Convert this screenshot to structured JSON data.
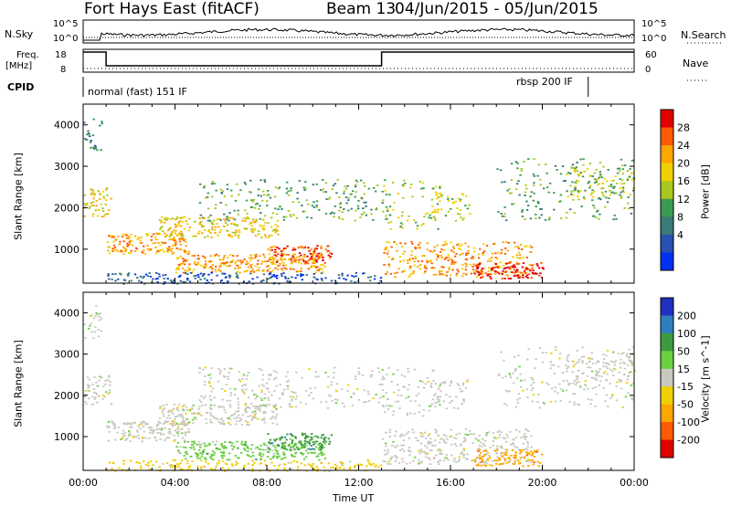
{
  "header": {
    "station": "Fort Hays East (fitACF)",
    "beam": "Beam 13",
    "date_range": "04/Jun/2015 - 05/Jun/2015"
  },
  "top_panels": {
    "nsky_label": "N.Sky",
    "nsky_ticks": [
      "10^5",
      "10^0"
    ],
    "nsearch_ticks": [
      "10^5",
      "10^0"
    ],
    "nsearch_label": "N.Search",
    "freq_label_line1": "Freq.",
    "freq_label_line2": "[MHz]",
    "freq_ticks": [
      "18",
      "8"
    ],
    "nave_ticks": [
      "60",
      "0"
    ],
    "nave_label": "Nave",
    "cpid_label": "CPID",
    "cpid_modes": [
      {
        "label": "normal (fast) 151 IF",
        "start_hour": 0,
        "end_hour": 22
      },
      {
        "label": "rbsp 200 IF",
        "start_hour": 22,
        "end_hour": 24
      }
    ],
    "freq_segments": [
      {
        "start": 0,
        "end": 1,
        "level": "high"
      },
      {
        "start": 1,
        "end": 13,
        "level": "low"
      },
      {
        "start": 13,
        "end": 24,
        "level": "high"
      }
    ]
  },
  "chart_data": [
    {
      "type": "heatmap",
      "name": "power",
      "ylabel": "Slant Range [km]",
      "colorbar_label": "Power [dB]",
      "colorbar_ticks": [
        "28",
        "24",
        "20",
        "16",
        "12",
        "8",
        "4"
      ],
      "colorbar_colors": [
        "#e00000",
        "#ff5a00",
        "#ffa500",
        "#f0d000",
        "#a8c820",
        "#3a9a50",
        "#3a7a7a",
        "#2850b0",
        "#0030f0"
      ],
      "yticks": [
        1000,
        2000,
        3000,
        4000
      ],
      "ylim": [
        180,
        4500
      ],
      "xlim": [
        0,
        24
      ]
    },
    {
      "type": "heatmap",
      "name": "velocity",
      "ylabel": "Slant Range [km]",
      "colorbar_label": "Velocity [m s^-1]",
      "colorbar_ticks": [
        "200",
        "100",
        "50",
        "15",
        "-15",
        "-50",
        "-100",
        "-200"
      ],
      "colorbar_colors": [
        "#2030c0",
        "#2f7fc0",
        "#3f9a3f",
        "#6ad040",
        "#c8c8c0",
        "#f0d000",
        "#ffa500",
        "#ff5a00",
        "#e00000"
      ],
      "yticks": [
        1000,
        2000,
        3000,
        4000
      ],
      "ylim": [
        180,
        4500
      ],
      "xlim": [
        0,
        24
      ],
      "xlabel": "Time UT",
      "xticks": [
        "00:00",
        "04:00",
        "08:00",
        "12:00",
        "16:00",
        "20:00",
        "00:00"
      ]
    }
  ],
  "colors": {
    "plot_frame": "#000000",
    "ground_scatter": "#c8c8c0"
  }
}
